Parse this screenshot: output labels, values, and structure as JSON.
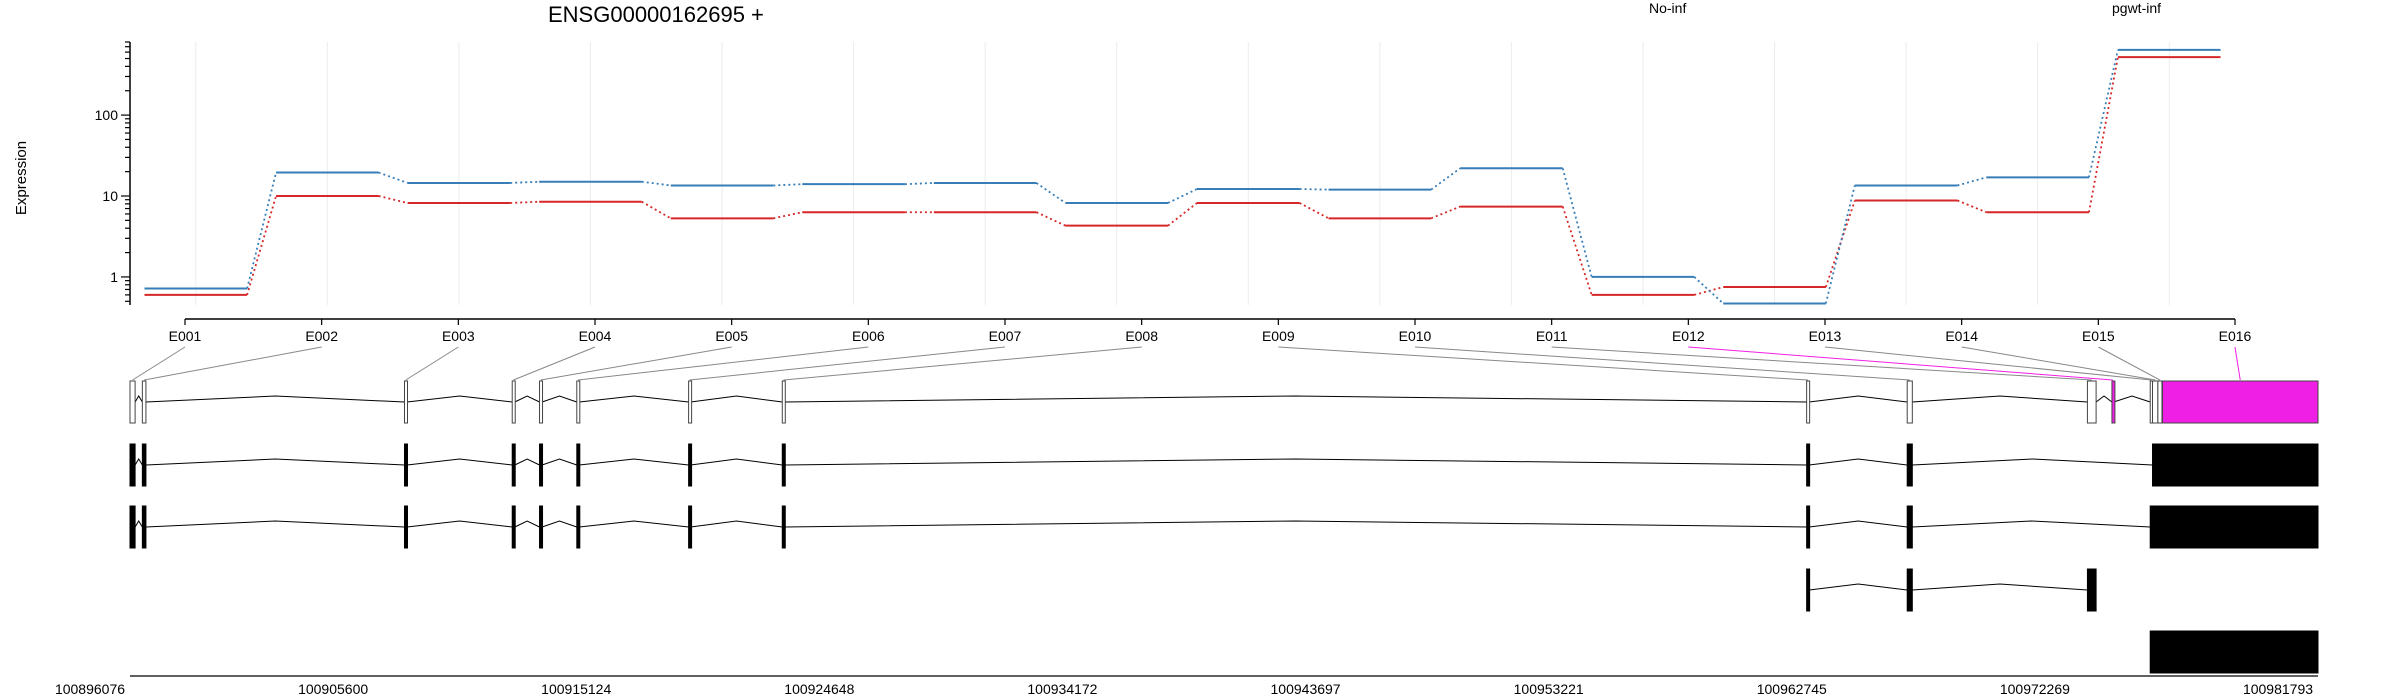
{
  "chart_data": {
    "type": "line",
    "title": "ENSG00000162695 +",
    "ylabel": "Expression",
    "y_scale": "log",
    "ylim": [
      0.45,
      800
    ],
    "yticks": [
      1,
      10,
      100
    ],
    "ytick_labels": [
      "1",
      "10",
      "100"
    ],
    "categories": [
      "E001",
      "E002",
      "E003",
      "E004",
      "E005",
      "E006",
      "E007",
      "E008",
      "E009",
      "E010",
      "E011",
      "E012",
      "E013",
      "E014",
      "E015",
      "E016"
    ],
    "series": [
      {
        "name": "No-inf",
        "color": "#d62728",
        "values": [
          0.6,
          10,
          8.2,
          8.5,
          5.3,
          6.3,
          6.3,
          4.3,
          8.2,
          5.3,
          7.4,
          0.6,
          0.75,
          8.8,
          6.3,
          520
        ]
      },
      {
        "name": "pgwt-inf",
        "color": "#377eb8",
        "values": [
          0.72,
          19.5,
          14.5,
          15,
          13.5,
          14,
          14.5,
          8.2,
          12.2,
          12,
          22,
          1.0,
          0.47,
          13.5,
          17,
          640
        ]
      }
    ],
    "legend_position": "top",
    "grid": true,
    "highlight_color": "#f01fe6",
    "highlight_exons": [
      "E012",
      "E016"
    ],
    "genomic_axis_labels": [
      "100896076",
      "100905600",
      "100915124",
      "100924648",
      "100934172",
      "100943697",
      "100953221",
      "100962745",
      "100972269",
      "100981793"
    ],
    "gene_model": {
      "start": 100896076,
      "end": 100981793,
      "exons": [
        {
          "id": "E001",
          "start": 100896076,
          "end": 100896276
        },
        {
          "id": "E002",
          "start": 100896560,
          "end": 100896700
        },
        {
          "id": "E003",
          "start": 100906830,
          "end": 100906930
        },
        {
          "id": "E004",
          "start": 100911050,
          "end": 100911150
        },
        {
          "id": "E005",
          "start": 100912120,
          "end": 100912220
        },
        {
          "id": "E006",
          "start": 100913580,
          "end": 100913680
        },
        {
          "id": "E007",
          "start": 100917960,
          "end": 100918040
        },
        {
          "id": "E008",
          "start": 100921630,
          "end": 100921730
        },
        {
          "id": "E009",
          "start": 100961760,
          "end": 100961860
        },
        {
          "id": "E010",
          "start": 100965700,
          "end": 100965900
        },
        {
          "id": "E011",
          "start": 100972760,
          "end": 100973100
        },
        {
          "id": "E012",
          "start": 100973720,
          "end": 100973790
        },
        {
          "id": "E013",
          "start": 100975220,
          "end": 100975300
        },
        {
          "id": "E014",
          "start": 100975310,
          "end": 100975520
        },
        {
          "id": "E015",
          "start": 100975520,
          "end": 100975680
        },
        {
          "id": "E016",
          "start": 100975700,
          "end": 100981793
        }
      ],
      "transcripts": [
        [
          [
            "E001",
            "E002",
            "E003",
            "E004",
            "E005",
            "E006",
            "E007",
            "E008",
            "E009",
            "E010",
            "E014",
            "E015",
            "E016"
          ]
        ],
        [
          [
            "E001",
            "E002",
            "E003",
            "E004",
            "E005",
            "E006",
            "E007",
            "E008",
            "E009",
            "E010",
            "E013",
            "E014",
            "E015",
            "E016"
          ]
        ],
        [
          [
            "E009",
            "E010",
            "E011"
          ]
        ],
        [
          [
            "E013",
            "E014",
            "E015",
            "E016"
          ]
        ]
      ]
    }
  }
}
